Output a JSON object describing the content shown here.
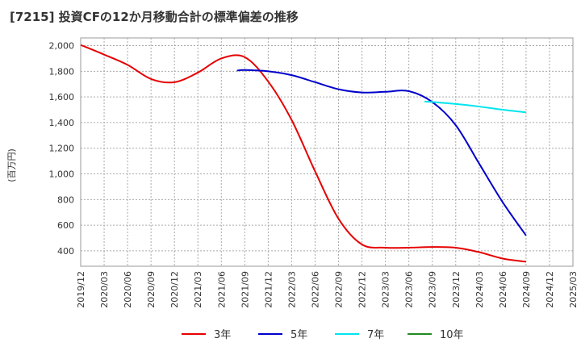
{
  "chart_data": {
    "type": "line",
    "title": "[7215]  投資CFの12か月移動合計の標準偏差の推移",
    "ylabel": "(百万円)",
    "xlabel": "",
    "ylim": [
      280,
      2060
    ],
    "y_ticks": [
      400,
      600,
      800,
      1000,
      1200,
      1400,
      1600,
      1800,
      2000
    ],
    "y_tick_labels": [
      "400",
      "600",
      "800",
      "1,000",
      "1,200",
      "1,400",
      "1,600",
      "1,800",
      "2,000"
    ],
    "x_tick_labels": [
      "2019/12",
      "2020/03",
      "2020/06",
      "2020/09",
      "2020/12",
      "2021/03",
      "2021/06",
      "2021/09",
      "2021/12",
      "2022/03",
      "2022/06",
      "2022/09",
      "2022/12",
      "2023/03",
      "2023/06",
      "2023/09",
      "2023/12",
      "2024/03",
      "2024/06",
      "2024/09",
      "2024/12",
      "2025/03"
    ],
    "grid": true,
    "legend_position": "bottom",
    "series": [
      {
        "name": "3年",
        "color": "#e60000",
        "x": [
          "2019/12",
          "2020/03",
          "2020/06",
          "2020/09",
          "2020/12",
          "2021/03",
          "2021/06",
          "2021/09",
          "2021/12",
          "2022/03",
          "2022/06",
          "2022/09",
          "2022/12",
          "2023/03",
          "2023/06",
          "2023/09",
          "2023/12",
          "2024/03",
          "2024/06",
          "2024/09"
        ],
        "values": [
          2005,
          1930,
          1850,
          1740,
          1715,
          1790,
          1900,
          1910,
          1720,
          1420,
          1020,
          650,
          450,
          425,
          425,
          430,
          425,
          390,
          340,
          315
        ]
      },
      {
        "name": "5年",
        "color": "#0000cc",
        "x": [
          "2021/08",
          "2021/09",
          "2021/12",
          "2022/03",
          "2022/06",
          "2022/09",
          "2022/12",
          "2023/03",
          "2023/06",
          "2023/09",
          "2023/12",
          "2024/03",
          "2024/06",
          "2024/09"
        ],
        "values": [
          1805,
          1810,
          1800,
          1770,
          1715,
          1660,
          1635,
          1640,
          1645,
          1560,
          1380,
          1080,
          780,
          520
        ]
      },
      {
        "name": "7年",
        "color": "#00e5ee",
        "x": [
          "2023/08",
          "2023/12",
          "2024/03",
          "2024/06",
          "2024/09"
        ],
        "values": [
          1565,
          1545,
          1525,
          1500,
          1480
        ]
      },
      {
        "name": "10年",
        "color": "#228b22",
        "x": [],
        "values": []
      }
    ]
  }
}
